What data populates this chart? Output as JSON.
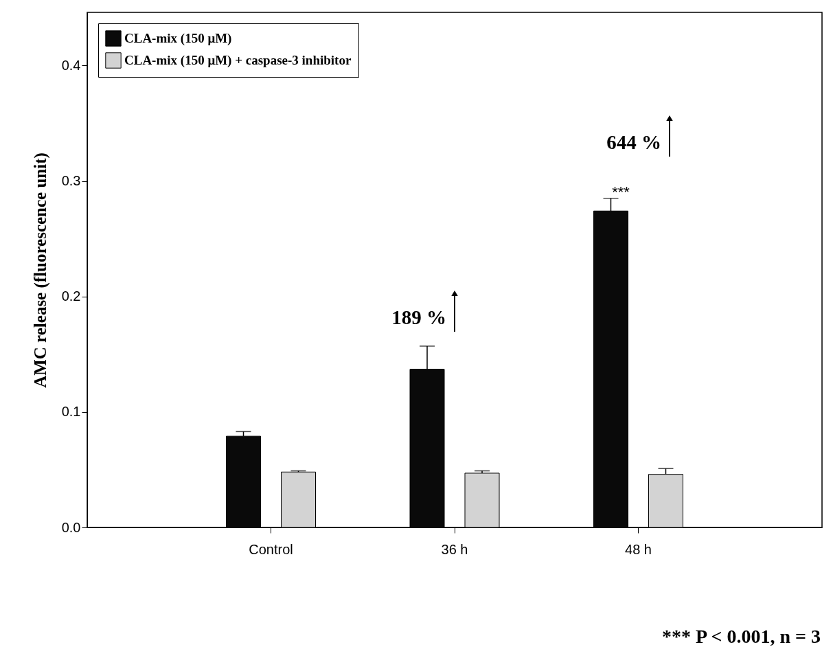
{
  "chart_data": {
    "type": "bar",
    "ylabel": "AMC release (fluorescence unit)",
    "categories": [
      "Control",
      "36 h",
      "48 h"
    ],
    "series": [
      {
        "name": "CLA-mix (150 μM)",
        "color": "#0a0a0a",
        "values": [
          0.079,
          0.137,
          0.274
        ],
        "errors": [
          0.004,
          0.02,
          0.011
        ]
      },
      {
        "name": "CLA-mix (150 μM) + caspase-3 inhibitor",
        "color": "#d3d3d3",
        "values": [
          0.048,
          0.047,
          0.046
        ],
        "errors": [
          0.001,
          0.002,
          0.005
        ]
      }
    ],
    "ylim": [
      0,
      0.446
    ],
    "yticks": [
      {
        "value": 0,
        "label": "0.0"
      },
      {
        "value": 0.1,
        "label": "0.1"
      },
      {
        "value": 0.2,
        "label": "0.2"
      },
      {
        "value": 0.3,
        "label": "0.3"
      },
      {
        "value": 0.4,
        "label": "0.4"
      }
    ],
    "annotations": [
      "189 %",
      "644 %",
      "***",
      "*** P < 0.001, n = 3"
    ],
    "legend": "top left",
    "grid": false
  }
}
